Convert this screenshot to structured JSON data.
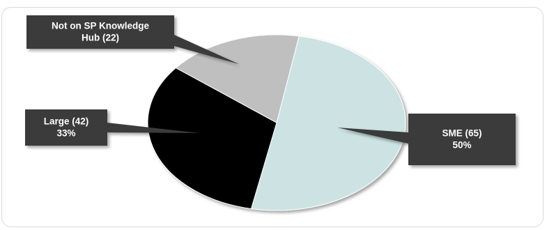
{
  "chart_data": {
    "type": "pie",
    "title": "",
    "slices": [
      {
        "name": "SME",
        "value": 65,
        "percent": "50%",
        "label_line1": "SME (65)",
        "label_line2": "50%",
        "color": "#cde3e3"
      },
      {
        "name": "Large",
        "value": 42,
        "percent": "33%",
        "label_line1": "Large (42)",
        "label_line2": "33%",
        "color": "#000000"
      },
      {
        "name": "Not on SP Knowledge Hub",
        "value": 22,
        "percent": "",
        "label_line1": "Not on SP Knowledge",
        "label_line2": "Hub (22)",
        "color": "#bfbfbf"
      }
    ],
    "legend": "none",
    "callout_color": "#3b3b3b"
  }
}
